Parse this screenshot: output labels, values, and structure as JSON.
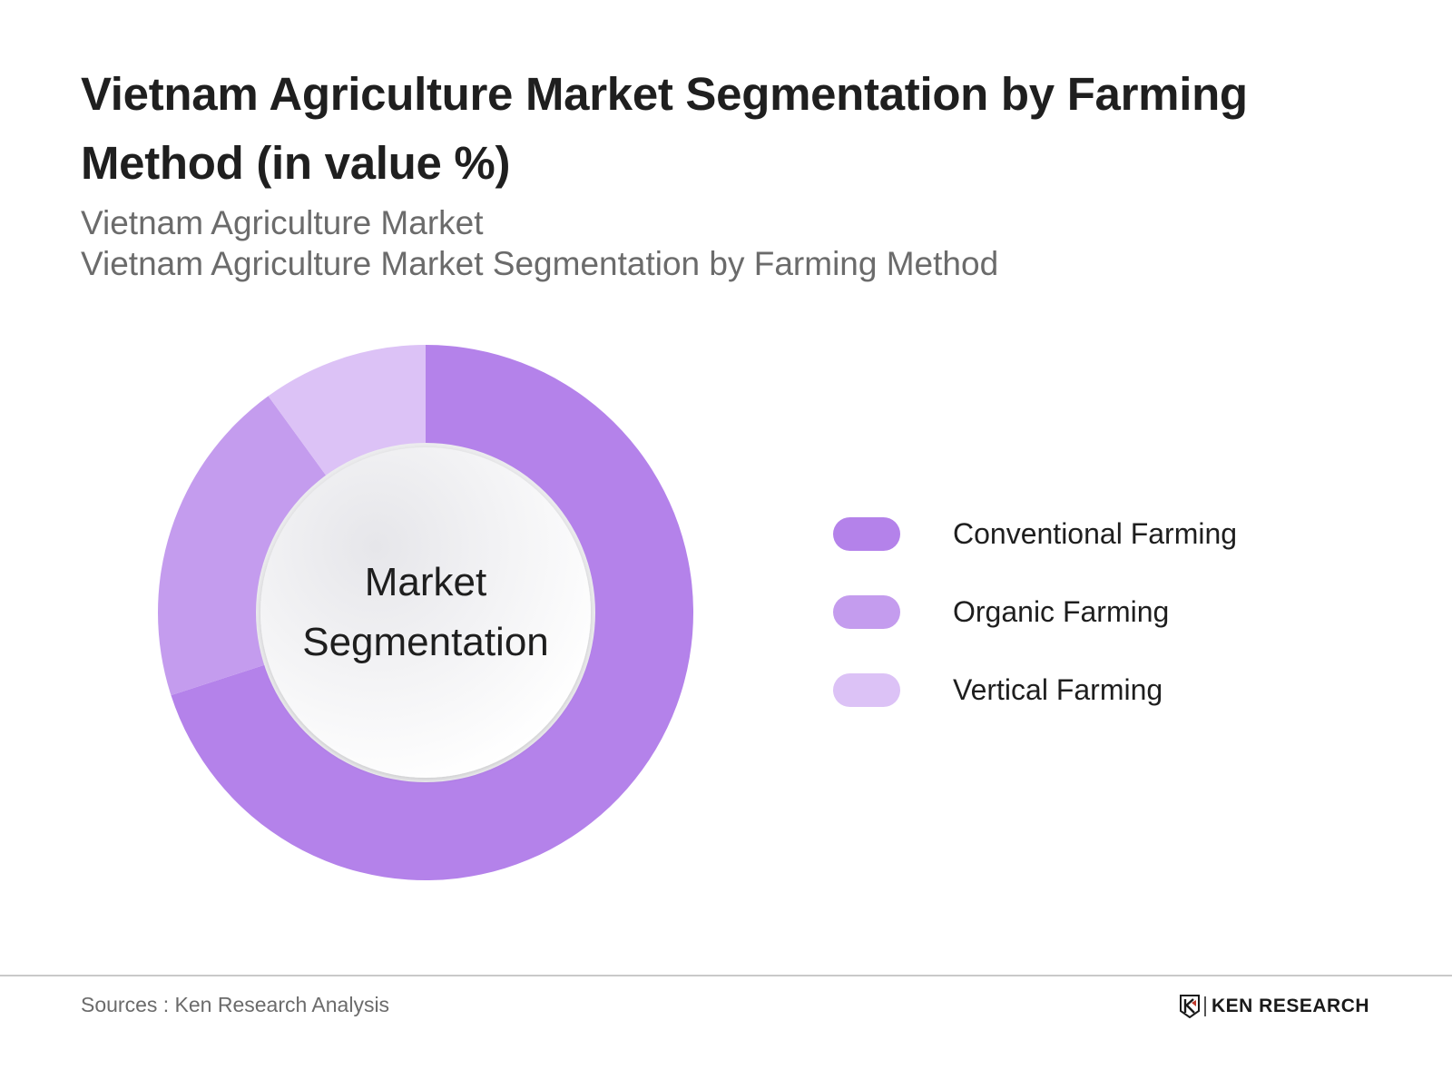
{
  "header": {
    "title": "Vietnam Agriculture Market Segmentation by Farming Method (in value %)",
    "subtitle_1": "Vietnam Agriculture Market",
    "subtitle_2": "Vietnam Agriculture Market Segmentation by Farming Method"
  },
  "donut": {
    "center_line_1": "Market",
    "center_line_2": "Segmentation"
  },
  "legend": {
    "items": [
      {
        "label": "Conventional Farming",
        "color": "#b482ea"
      },
      {
        "label": "Organic Farming",
        "color": "#c49cee"
      },
      {
        "label": "Vertical Farming",
        "color": "#dcc2f6"
      }
    ]
  },
  "footer": {
    "sources": "Sources : Ken Research Analysis",
    "logo_text": "KEN RESEARCH"
  },
  "chart_data": {
    "type": "pie",
    "variant": "donut",
    "title": "Vietnam Agriculture Market Segmentation by Farming Method (in value %)",
    "subtitle": [
      "Vietnam Agriculture Market",
      "Vietnam Agriculture Market Segmentation by Farming Method"
    ],
    "center_text": "Market Segmentation",
    "categories": [
      "Conventional Farming",
      "Organic Farming",
      "Vertical Farming"
    ],
    "values": [
      70,
      20,
      10
    ],
    "unit": "%",
    "colors": [
      "#b482ea",
      "#c49cee",
      "#dcc2f6"
    ],
    "start_angle_deg": 0,
    "direction": "clockwise",
    "legend_position": "right",
    "data_labels": false,
    "source": "Sources : Ken Research Analysis"
  }
}
